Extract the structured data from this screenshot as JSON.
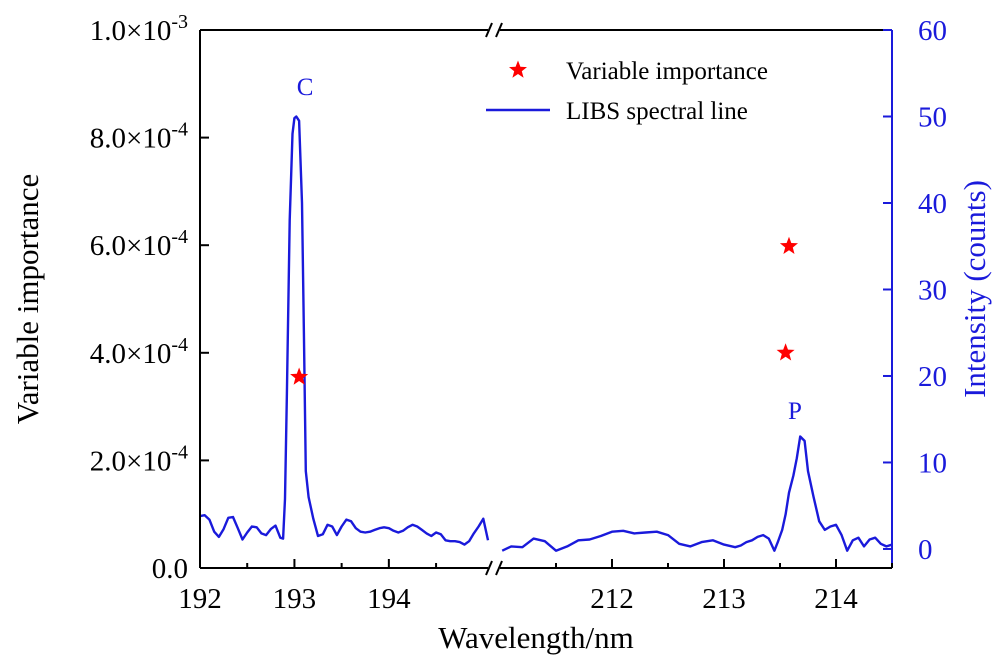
{
  "chart_data": {
    "type": "line",
    "xlabel": "Wavelength/nm",
    "ylabel_left": "Variable importance",
    "ylabel_right": "Intensity (counts)",
    "colors": {
      "left_axis": "#000000",
      "right_axis": "#1a1adb",
      "line": "#1a1adb",
      "star": "#ff0000"
    },
    "x_segments": [
      {
        "xlim": [
          192.0,
          195.05
        ],
        "ticks": [
          "192",
          "193",
          "194"
        ],
        "tick_values": [
          192,
          193,
          194
        ]
      },
      {
        "xlim": [
          211.0,
          214.5
        ],
        "ticks": [
          "212",
          "213",
          "214"
        ],
        "tick_values": [
          212,
          213,
          214
        ]
      }
    ],
    "axis_break_symbol": "//",
    "y_left": {
      "ylim": [
        0,
        0.001
      ],
      "ticks": [
        0,
        0.0002,
        0.0004,
        0.0006,
        0.0008,
        0.001
      ],
      "tick_labels": [
        {
          "mantissa": "0.0",
          "exp": ""
        },
        {
          "mantissa": "2.0×10",
          "exp": "-4"
        },
        {
          "mantissa": "4.0×10",
          "exp": "-4"
        },
        {
          "mantissa": "6.0×10",
          "exp": "-4"
        },
        {
          "mantissa": "8.0×10",
          "exp": "-4"
        },
        {
          "mantissa": "1.0×10",
          "exp": "-3"
        }
      ]
    },
    "y_right": {
      "ylim": [
        -2.2,
        60
      ],
      "ticks": [
        0,
        10,
        20,
        30,
        40,
        50,
        60
      ],
      "tick_labels": [
        "0",
        "10",
        "20",
        "30",
        "40",
        "50",
        "60"
      ]
    },
    "legend": {
      "position": "top-right",
      "items": [
        {
          "label": "Variable importance",
          "marker": "star"
        },
        {
          "label": "LIBS spectral line",
          "marker": "line"
        }
      ]
    },
    "annotations": [
      {
        "text": "C",
        "x": 193.05,
        "y": 52.5,
        "segment": 0
      },
      {
        "text": "P",
        "x": 213.58,
        "y": 15.0,
        "segment": 1
      }
    ],
    "series": [
      {
        "name": "LIBS spectral line",
        "axis": "right",
        "segments": [
          {
            "x": [
              192.0,
              192.05,
              192.1,
              192.15,
              192.2,
              192.25,
              192.3,
              192.35,
              192.4,
              192.45,
              192.5,
              192.55,
              192.6,
              192.65,
              192.7,
              192.75,
              192.8,
              192.85,
              192.88,
              192.9,
              192.92,
              192.95,
              192.98,
              193.0,
              193.02,
              193.05,
              193.08,
              193.1,
              193.12,
              193.15,
              193.2,
              193.25,
              193.3,
              193.35,
              193.4,
              193.45,
              193.5,
              193.55,
              193.6,
              193.65,
              193.7,
              193.75,
              193.8,
              193.85,
              193.9,
              193.95,
              194.0,
              194.05,
              194.1,
              194.15,
              194.2,
              194.25,
              194.3,
              194.35,
              194.4,
              194.45,
              194.5,
              194.55,
              194.6,
              194.65,
              194.7,
              194.75,
              194.8,
              194.85,
              194.9,
              194.95,
              195.0,
              195.05
            ],
            "y": [
              3.8,
              3.9,
              3.4,
              2.0,
              1.4,
              2.3,
              3.6,
              3.7,
              2.4,
              1.1,
              1.9,
              2.6,
              2.5,
              1.8,
              1.6,
              2.3,
              2.7,
              1.3,
              1.2,
              5.8,
              18.0,
              38.0,
              48.0,
              49.8,
              50.0,
              49.5,
              40.0,
              25.0,
              9.0,
              6.0,
              3.5,
              1.5,
              1.7,
              2.8,
              2.6,
              1.6,
              2.6,
              3.4,
              3.2,
              2.4,
              2.0,
              1.9,
              2.0,
              2.2,
              2.4,
              2.5,
              2.4,
              2.1,
              1.9,
              2.1,
              2.5,
              2.8,
              2.6,
              2.2,
              1.8,
              1.5,
              1.9,
              1.7,
              1.0,
              0.9,
              0.9,
              0.8,
              0.5,
              0.9,
              1.8,
              2.6,
              3.5,
              1.0
            ]
          },
          {
            "x": [
              211.02,
              211.1,
              211.2,
              211.3,
              211.4,
              211.5,
              211.6,
              211.7,
              211.8,
              211.9,
              212.0,
              212.1,
              212.2,
              212.3,
              212.4,
              212.5,
              212.6,
              212.7,
              212.8,
              212.9,
              213.0,
              213.1,
              213.15,
              213.2,
              213.25,
              213.3,
              213.35,
              213.4,
              213.45,
              213.48,
              213.5,
              213.52,
              213.55,
              213.58,
              213.62,
              213.65,
              213.68,
              213.72,
              213.75,
              213.8,
              213.85,
              213.9,
              213.95,
              214.0,
              214.05,
              214.1,
              214.15,
              214.2,
              214.25,
              214.3,
              214.35,
              214.4,
              214.45,
              214.5
            ],
            "y": [
              -0.2,
              0.3,
              0.2,
              1.2,
              0.9,
              -0.2,
              0.3,
              1.0,
              1.1,
              1.5,
              2.0,
              2.1,
              1.8,
              1.9,
              2.0,
              1.6,
              0.6,
              0.3,
              0.8,
              1.0,
              0.5,
              0.2,
              0.4,
              0.8,
              1.0,
              1.4,
              1.6,
              1.2,
              -0.2,
              0.8,
              1.5,
              2.2,
              4.0,
              6.5,
              8.5,
              10.5,
              13.0,
              12.5,
              9.0,
              6.0,
              3.2,
              2.2,
              2.6,
              2.8,
              1.6,
              -0.2,
              1.0,
              1.3,
              0.3,
              1.1,
              1.3,
              0.6,
              0.3,
              0.5
            ]
          }
        ]
      },
      {
        "name": "Variable importance",
        "axis": "left",
        "type": "scatter",
        "points": [
          {
            "x": 193.05,
            "y": 0.000355,
            "segment": 0
          },
          {
            "x": 213.58,
            "y": 0.000598,
            "segment": 1
          },
          {
            "x": 213.55,
            "y": 0.0004,
            "segment": 1
          }
        ]
      }
    ]
  }
}
